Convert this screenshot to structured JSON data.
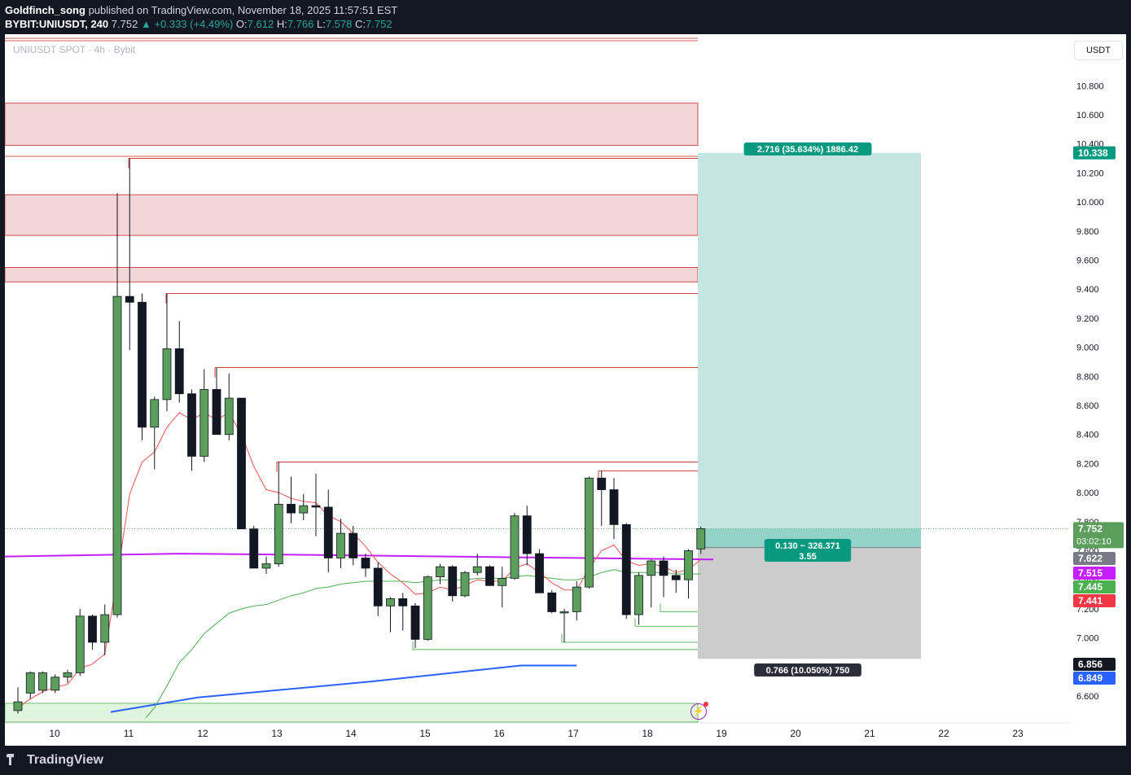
{
  "header": {
    "author": "Goldfinch_song",
    "published_text": "published on TradingView.com, November 18, 2025 11:57:51 EST",
    "symbol": "BYBIT:UNIUSDT, 240",
    "last": "7.752",
    "change": "+0.333 (+4.49%)",
    "o_label": "O:",
    "o": "7.612",
    "h_label": "H:",
    "h": "7.766",
    "l_label": "L:",
    "l": "7.578",
    "c_label": "C:",
    "c": "7.752"
  },
  "chart_label": "UNIUSDT SPOT · 4h · Bybit",
  "currency_button": "USDT",
  "footer": {
    "brand": "TradingView"
  },
  "colors": {
    "up": "#5c9e5c",
    "down": "#131722",
    "zone": "#f3d6d8",
    "zone_border": "#c62828",
    "target": "#c3e6e0",
    "stop": "#cccccc",
    "ema_red": "#ef5350",
    "ema_green": "#4caf50",
    "sma_blue": "#2962ff",
    "purple": "#c51fff"
  },
  "chart_data": {
    "type": "candlestick",
    "timeframe": "4h",
    "x_ticks": [
      "10",
      "11",
      "12",
      "13",
      "14",
      "15",
      "16",
      "17",
      "18",
      "19",
      "20",
      "21",
      "22",
      "23"
    ],
    "y_ticks": [
      "6.600",
      "6.800",
      "7.000",
      "7.200",
      "7.400",
      "7.600",
      "7.800",
      "8.000",
      "8.200",
      "8.400",
      "8.600",
      "8.800",
      "9.000",
      "9.200",
      "9.400",
      "9.600",
      "9.800",
      "10.000",
      "10.200",
      "10.400",
      "10.600",
      "10.800"
    ],
    "y_range": [
      6.52,
      11.0
    ],
    "candles": [
      {
        "o": 6.5,
        "h": 6.66,
        "l": 6.48,
        "c": 6.56
      },
      {
        "o": 6.62,
        "h": 6.77,
        "l": 6.58,
        "c": 6.76
      },
      {
        "o": 6.64,
        "h": 6.77,
        "l": 6.62,
        "c": 6.76
      },
      {
        "o": 6.64,
        "h": 6.75,
        "l": 6.62,
        "c": 6.73
      },
      {
        "o": 6.73,
        "h": 6.78,
        "l": 6.69,
        "c": 6.76
      },
      {
        "o": 6.76,
        "h": 7.2,
        "l": 6.74,
        "c": 7.15
      },
      {
        "o": 7.15,
        "h": 7.16,
        "l": 6.92,
        "c": 6.97
      },
      {
        "o": 6.97,
        "h": 7.23,
        "l": 6.88,
        "c": 7.16
      },
      {
        "o": 7.16,
        "h": 10.06,
        "l": 7.14,
        "c": 9.35
      },
      {
        "o": 9.35,
        "h": 10.3,
        "l": 8.98,
        "c": 9.31
      },
      {
        "o": 9.31,
        "h": 9.37,
        "l": 8.36,
        "c": 8.45
      },
      {
        "o": 8.45,
        "h": 8.66,
        "l": 8.16,
        "c": 8.64
      },
      {
        "o": 8.64,
        "h": 9.37,
        "l": 8.56,
        "c": 8.99
      },
      {
        "o": 8.99,
        "h": 9.18,
        "l": 8.62,
        "c": 8.68
      },
      {
        "o": 8.68,
        "h": 8.71,
        "l": 8.15,
        "c": 8.25
      },
      {
        "o": 8.25,
        "h": 8.85,
        "l": 8.21,
        "c": 8.71
      },
      {
        "o": 8.71,
        "h": 8.86,
        "l": 8.4,
        "c": 8.4
      },
      {
        "o": 8.4,
        "h": 8.82,
        "l": 8.36,
        "c": 8.65
      },
      {
        "o": 8.65,
        "h": 8.65,
        "l": 7.75,
        "c": 7.75
      },
      {
        "o": 7.75,
        "h": 7.77,
        "l": 7.48,
        "c": 7.48
      },
      {
        "o": 7.48,
        "h": 7.56,
        "l": 7.44,
        "c": 7.51
      },
      {
        "o": 7.51,
        "h": 8.21,
        "l": 7.49,
        "c": 7.92
      },
      {
        "o": 7.92,
        "h": 8.11,
        "l": 7.79,
        "c": 7.86
      },
      {
        "o": 7.86,
        "h": 7.99,
        "l": 7.81,
        "c": 7.91
      },
      {
        "o": 7.91,
        "h": 8.13,
        "l": 7.7,
        "c": 7.9
      },
      {
        "o": 7.9,
        "h": 8.02,
        "l": 7.45,
        "c": 7.55
      },
      {
        "o": 7.55,
        "h": 7.82,
        "l": 7.48,
        "c": 7.72
      },
      {
        "o": 7.72,
        "h": 7.77,
        "l": 7.5,
        "c": 7.55
      },
      {
        "o": 7.55,
        "h": 7.58,
        "l": 7.42,
        "c": 7.48
      },
      {
        "o": 7.48,
        "h": 7.52,
        "l": 7.15,
        "c": 7.22
      },
      {
        "o": 7.22,
        "h": 7.28,
        "l": 7.04,
        "c": 7.27
      },
      {
        "o": 7.27,
        "h": 7.31,
        "l": 7.05,
        "c": 7.22
      },
      {
        "o": 7.22,
        "h": 7.24,
        "l": 6.93,
        "c": 6.99
      },
      {
        "o": 6.99,
        "h": 7.43,
        "l": 6.98,
        "c": 7.42
      },
      {
        "o": 7.42,
        "h": 7.51,
        "l": 7.37,
        "c": 7.49
      },
      {
        "o": 7.49,
        "h": 7.5,
        "l": 7.25,
        "c": 7.29
      },
      {
        "o": 7.29,
        "h": 7.46,
        "l": 7.28,
        "c": 7.45
      },
      {
        "o": 7.45,
        "h": 7.58,
        "l": 7.43,
        "c": 7.49
      },
      {
        "o": 7.49,
        "h": 7.5,
        "l": 7.36,
        "c": 7.36
      },
      {
        "o": 7.36,
        "h": 7.49,
        "l": 7.21,
        "c": 7.41
      },
      {
        "o": 7.41,
        "h": 7.86,
        "l": 7.4,
        "c": 7.84
      },
      {
        "o": 7.84,
        "h": 7.91,
        "l": 7.5,
        "c": 7.58
      },
      {
        "o": 7.58,
        "h": 7.61,
        "l": 7.32,
        "c": 7.31
      },
      {
        "o": 7.31,
        "h": 7.33,
        "l": 7.17,
        "c": 7.18
      },
      {
        "o": 7.18,
        "h": 7.2,
        "l": 6.97,
        "c": 7.18
      },
      {
        "o": 7.18,
        "h": 7.39,
        "l": 7.12,
        "c": 7.35
      },
      {
        "o": 7.35,
        "h": 8.11,
        "l": 7.34,
        "c": 8.1
      },
      {
        "o": 8.1,
        "h": 8.15,
        "l": 7.77,
        "c": 8.02
      },
      {
        "o": 8.02,
        "h": 8.1,
        "l": 7.68,
        "c": 7.78
      },
      {
        "o": 7.78,
        "h": 7.79,
        "l": 7.13,
        "c": 7.16
      },
      {
        "o": 7.16,
        "h": 7.45,
        "l": 7.09,
        "c": 7.43
      },
      {
        "o": 7.43,
        "h": 7.54,
        "l": 7.21,
        "c": 7.53
      },
      {
        "o": 7.53,
        "h": 7.56,
        "l": 7.28,
        "c": 7.43
      },
      {
        "o": 7.43,
        "h": 7.47,
        "l": 7.31,
        "c": 7.4
      },
      {
        "o": 7.4,
        "h": 7.61,
        "l": 7.27,
        "c": 7.6
      },
      {
        "o": 7.612,
        "h": 7.766,
        "l": 7.578,
        "c": 7.752
      }
    ],
    "resistance_zones": [
      [
        9.45,
        9.55
      ],
      [
        9.77,
        10.05
      ],
      [
        10.39,
        10.68
      ]
    ],
    "horizontal_levels": [
      10.3,
      9.37,
      8.86,
      8.21,
      8.15,
      6.92
    ],
    "support_levels": [
      7.18,
      7.08,
      6.97,
      6.92,
      6.55
    ],
    "ema_red": [
      6.52,
      6.58,
      6.63,
      6.66,
      6.68,
      6.79,
      6.82,
      6.89,
      7.42,
      7.99,
      8.21,
      8.28,
      8.45,
      8.55,
      8.5,
      8.55,
      8.5,
      8.55,
      8.4,
      8.18,
      8.02,
      8.0,
      7.96,
      7.94,
      7.93,
      7.84,
      7.8,
      7.72,
      7.63,
      7.52,
      7.44,
      7.38,
      7.3,
      7.31,
      7.35,
      7.33,
      7.36,
      7.4,
      7.39,
      7.39,
      7.48,
      7.51,
      7.45,
      7.38,
      7.33,
      7.33,
      7.48,
      7.6,
      7.64,
      7.53,
      7.5,
      7.51,
      7.49,
      7.45,
      7.47,
      7.54
    ],
    "ema_green": [
      null,
      null,
      null,
      null,
      null,
      null,
      null,
      null,
      null,
      null,
      null,
      6.52,
      6.67,
      6.83,
      6.92,
      7.03,
      7.1,
      7.17,
      7.2,
      7.22,
      7.23,
      7.26,
      7.29,
      7.31,
      7.34,
      7.35,
      7.37,
      7.38,
      7.39,
      7.39,
      7.39,
      7.39,
      7.38,
      7.39,
      7.4,
      7.4,
      7.4,
      7.41,
      7.41,
      7.41,
      7.42,
      7.43,
      7.42,
      7.41,
      7.4,
      7.4,
      7.42,
      7.45,
      7.47,
      7.45,
      7.45,
      7.45,
      7.45,
      7.44,
      7.44,
      7.44
    ],
    "sma_blue": [
      [
        13,
        6.49
      ],
      [
        19,
        6.59
      ],
      [
        33,
        6.7
      ],
      [
        45,
        6.81
      ]
    ],
    "ema_purple": [
      [
        0,
        7.56
      ],
      [
        13,
        7.58
      ],
      [
        25,
        7.57
      ],
      [
        45,
        7.55
      ],
      [
        56,
        7.54
      ]
    ],
    "position": {
      "entry": 7.622,
      "target": 10.338,
      "stop": 6.856,
      "target_label": "2.716 (35.634%) 1886.42",
      "middle_label_1": "0.130 ~ 326.371",
      "middle_label_2": "3.55",
      "stop_label": "0.766 (10.050%) 750"
    },
    "price_labels": [
      {
        "text": "10.338",
        "value": 10.338,
        "color": "#089981"
      },
      {
        "text": "7.752",
        "value": 7.752,
        "color": "#5c9e5c",
        "sub": "03:02:10"
      },
      {
        "text": "7.622",
        "value": 7.622,
        "color": "#787b86"
      },
      {
        "text": "7.515",
        "value": 7.515,
        "color": "#c51fff"
      },
      {
        "text": "7.445",
        "value": 7.445,
        "color": "#4caf50"
      },
      {
        "text": "7.441",
        "value": 7.441,
        "color": "#f23645"
      },
      {
        "text": "6.856",
        "value": 6.856,
        "color": "#131722"
      },
      {
        "text": "6.849",
        "value": 6.849,
        "color": "#2962ff"
      }
    ]
  }
}
